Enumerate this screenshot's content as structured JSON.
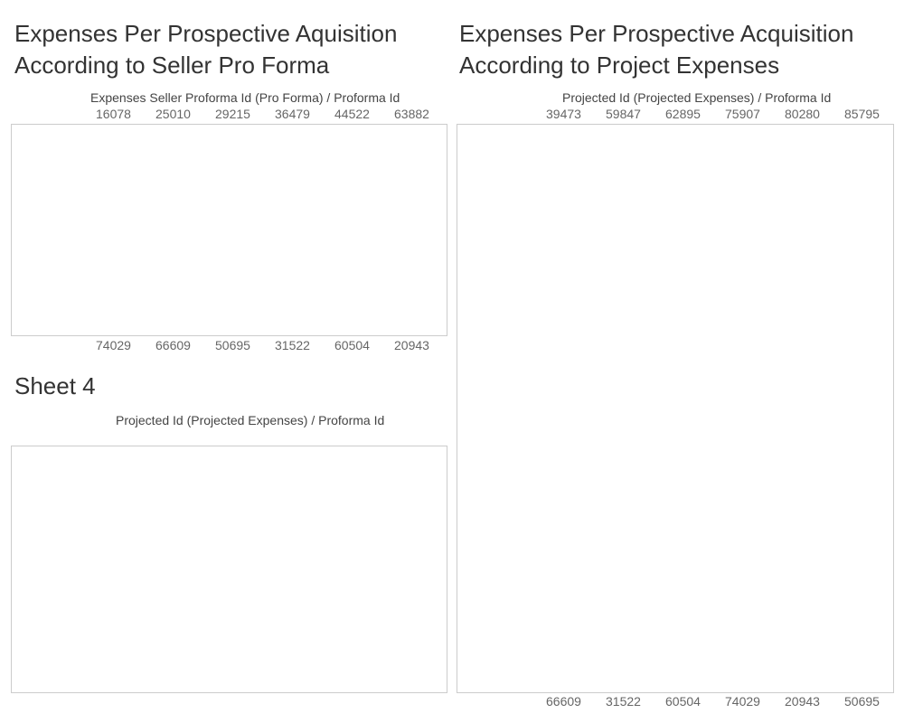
{
  "titles": {
    "left": "Expenses Per Prospective Aquisition\nAccording to Seller Pro Forma",
    "right": "Expenses Per Prospective Acquisition\nAccording to Project Expenses",
    "sheet4": "Sheet 4"
  },
  "headers": {
    "left": "Expenses Seller Proforma Id (Pro Forma)  /  Proforma Id",
    "right": "Projected Id (Projected Expenses)  /  Proforma Id",
    "sheet4": "Projected Id (Projected Expenses)  /  Proforma Id"
  },
  "left_ids": [
    "16078",
    "25010",
    "29215",
    "36479",
    "44522",
    "63882"
  ],
  "left_bottom": [
    "74029",
    "66609",
    "50695",
    "31522",
    "60504",
    "20943"
  ],
  "right_ids": [
    "39473",
    "59847",
    "62895",
    "75907",
    "80280",
    "85795"
  ],
  "right_bottom": [
    "66609",
    "31522",
    "60504",
    "74029",
    "20943",
    "50695"
  ]
}
